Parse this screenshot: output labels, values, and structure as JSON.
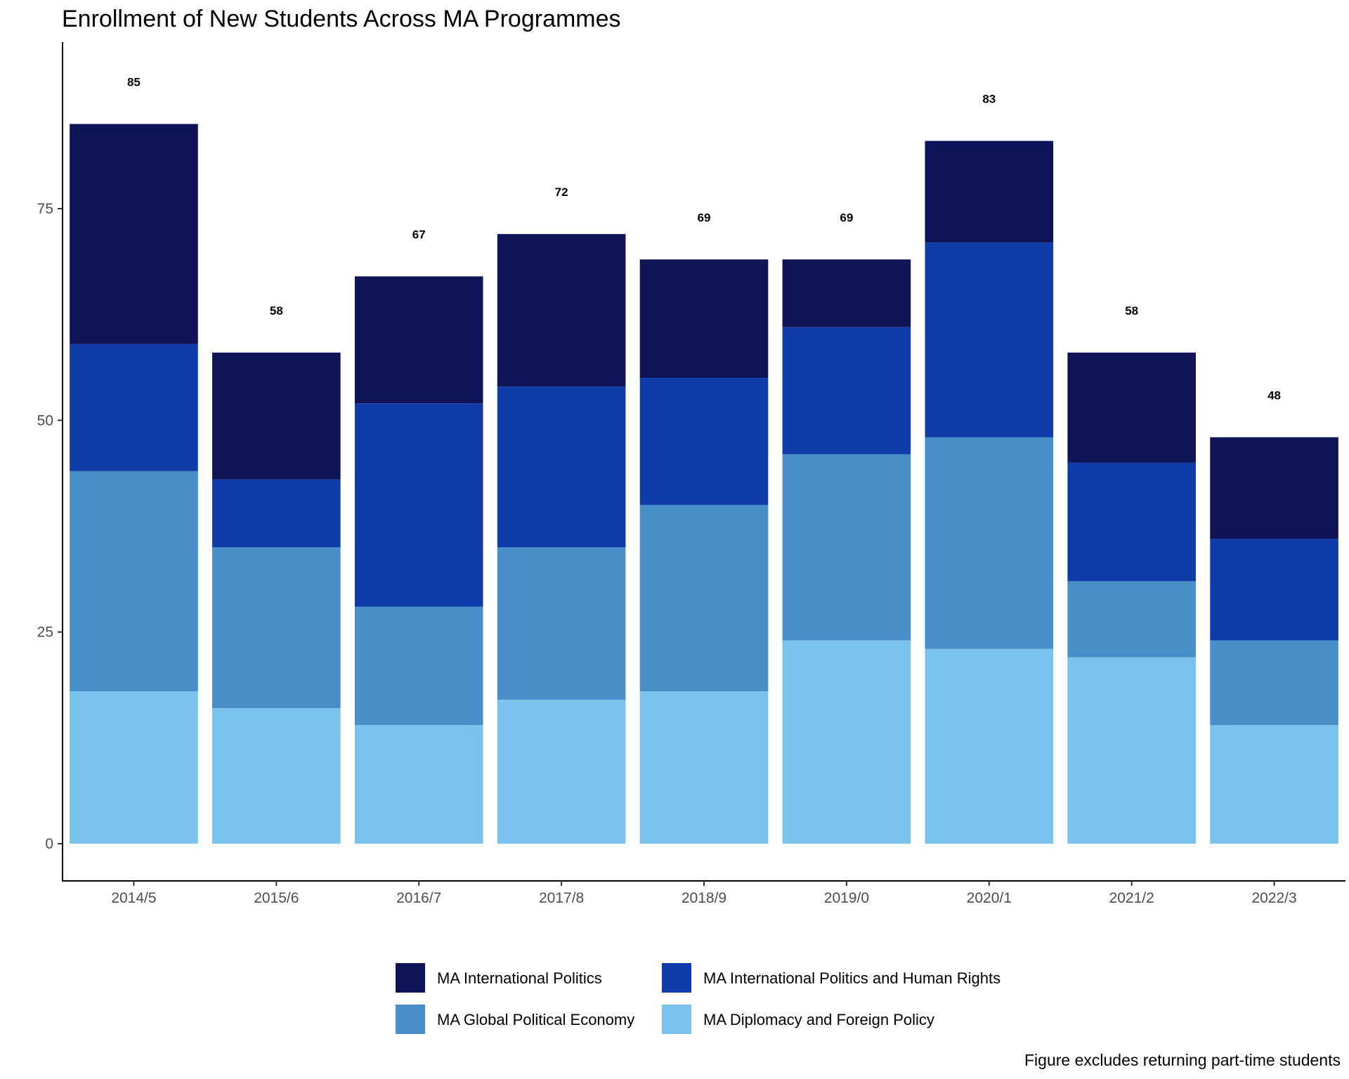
{
  "chart_data": {
    "type": "bar",
    "stacked": true,
    "title": "Enrollment of New Students Across MA Programmes",
    "caption": "Figure excludes returning part-time students",
    "xlabel": "",
    "ylabel": "",
    "categories": [
      "2014/5",
      "2015/6",
      "2016/7",
      "2017/8",
      "2018/9",
      "2019/0",
      "2020/1",
      "2021/2",
      "2022/3"
    ],
    "y_ticks": [
      0,
      25,
      50,
      75
    ],
    "ylim": [
      -4.5,
      97
    ],
    "totals": [
      85,
      58,
      67,
      72,
      69,
      69,
      83,
      58,
      48
    ],
    "series": [
      {
        "name": "MA Diplomacy and Foreign Policy",
        "color": "#79c2eb",
        "values": [
          18,
          16,
          14,
          17,
          18,
          24,
          23,
          22,
          14
        ]
      },
      {
        "name": "MA Global Political Economy",
        "color": "#488ec9",
        "values": [
          26,
          19,
          14,
          18,
          22,
          22,
          25,
          9,
          10
        ]
      },
      {
        "name": "MA International Politics and Human Rights",
        "color": "#103caa",
        "values": [
          15,
          8,
          24,
          19,
          15,
          15,
          23,
          14,
          12
        ]
      },
      {
        "name": "MA International Politics",
        "color": "#0f1459",
        "values": [
          26,
          15,
          15,
          18,
          14,
          8,
          12,
          13,
          12
        ]
      }
    ],
    "legend_order": [
      3,
      2,
      1,
      0
    ],
    "legend_position": "bottom",
    "grid": false
  }
}
